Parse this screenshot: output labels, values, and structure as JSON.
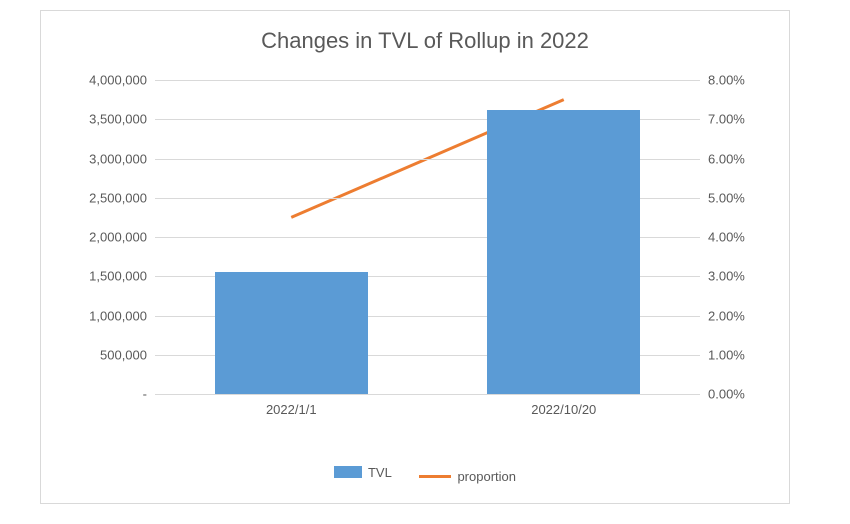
{
  "chart": {
    "type": "bar+line",
    "title": "Changes in TVL of Rollup in 2022",
    "title_fontsize": 22,
    "title_color": "#595959",
    "background_color": "#ffffff",
    "border_color": "#d9d9d9",
    "grid_color": "#d9d9d9",
    "label_color": "#595959",
    "label_fontsize": 13,
    "categories": [
      "2022/1/1",
      "2022/10/20"
    ],
    "bar_series": {
      "name": "TVL",
      "color": "#5b9bd5",
      "values": [
        1550000,
        3620000
      ],
      "bar_width_pct": 28
    },
    "line_series": {
      "name": "proportion",
      "color": "#ed7d31",
      "values": [
        4.5,
        7.5
      ],
      "line_width": 3
    },
    "y_left": {
      "min": 0,
      "max": 4000000,
      "tick_step": 500000,
      "ticks": [
        "-",
        "500,000",
        "1,000,000",
        "1,500,000",
        "2,000,000",
        "2,500,000",
        "3,000,000",
        "3,500,000",
        "4,000,000"
      ]
    },
    "y_right": {
      "min": 0,
      "max": 8,
      "tick_step": 1,
      "ticks": [
        "0.00%",
        "1.00%",
        "2.00%",
        "3.00%",
        "4.00%",
        "5.00%",
        "6.00%",
        "7.00%",
        "8.00%"
      ]
    },
    "legend": {
      "items": [
        {
          "type": "bar",
          "label": "TVL",
          "color": "#5b9bd5"
        },
        {
          "type": "line",
          "label": "proportion",
          "color": "#ed7d31"
        }
      ]
    }
  }
}
